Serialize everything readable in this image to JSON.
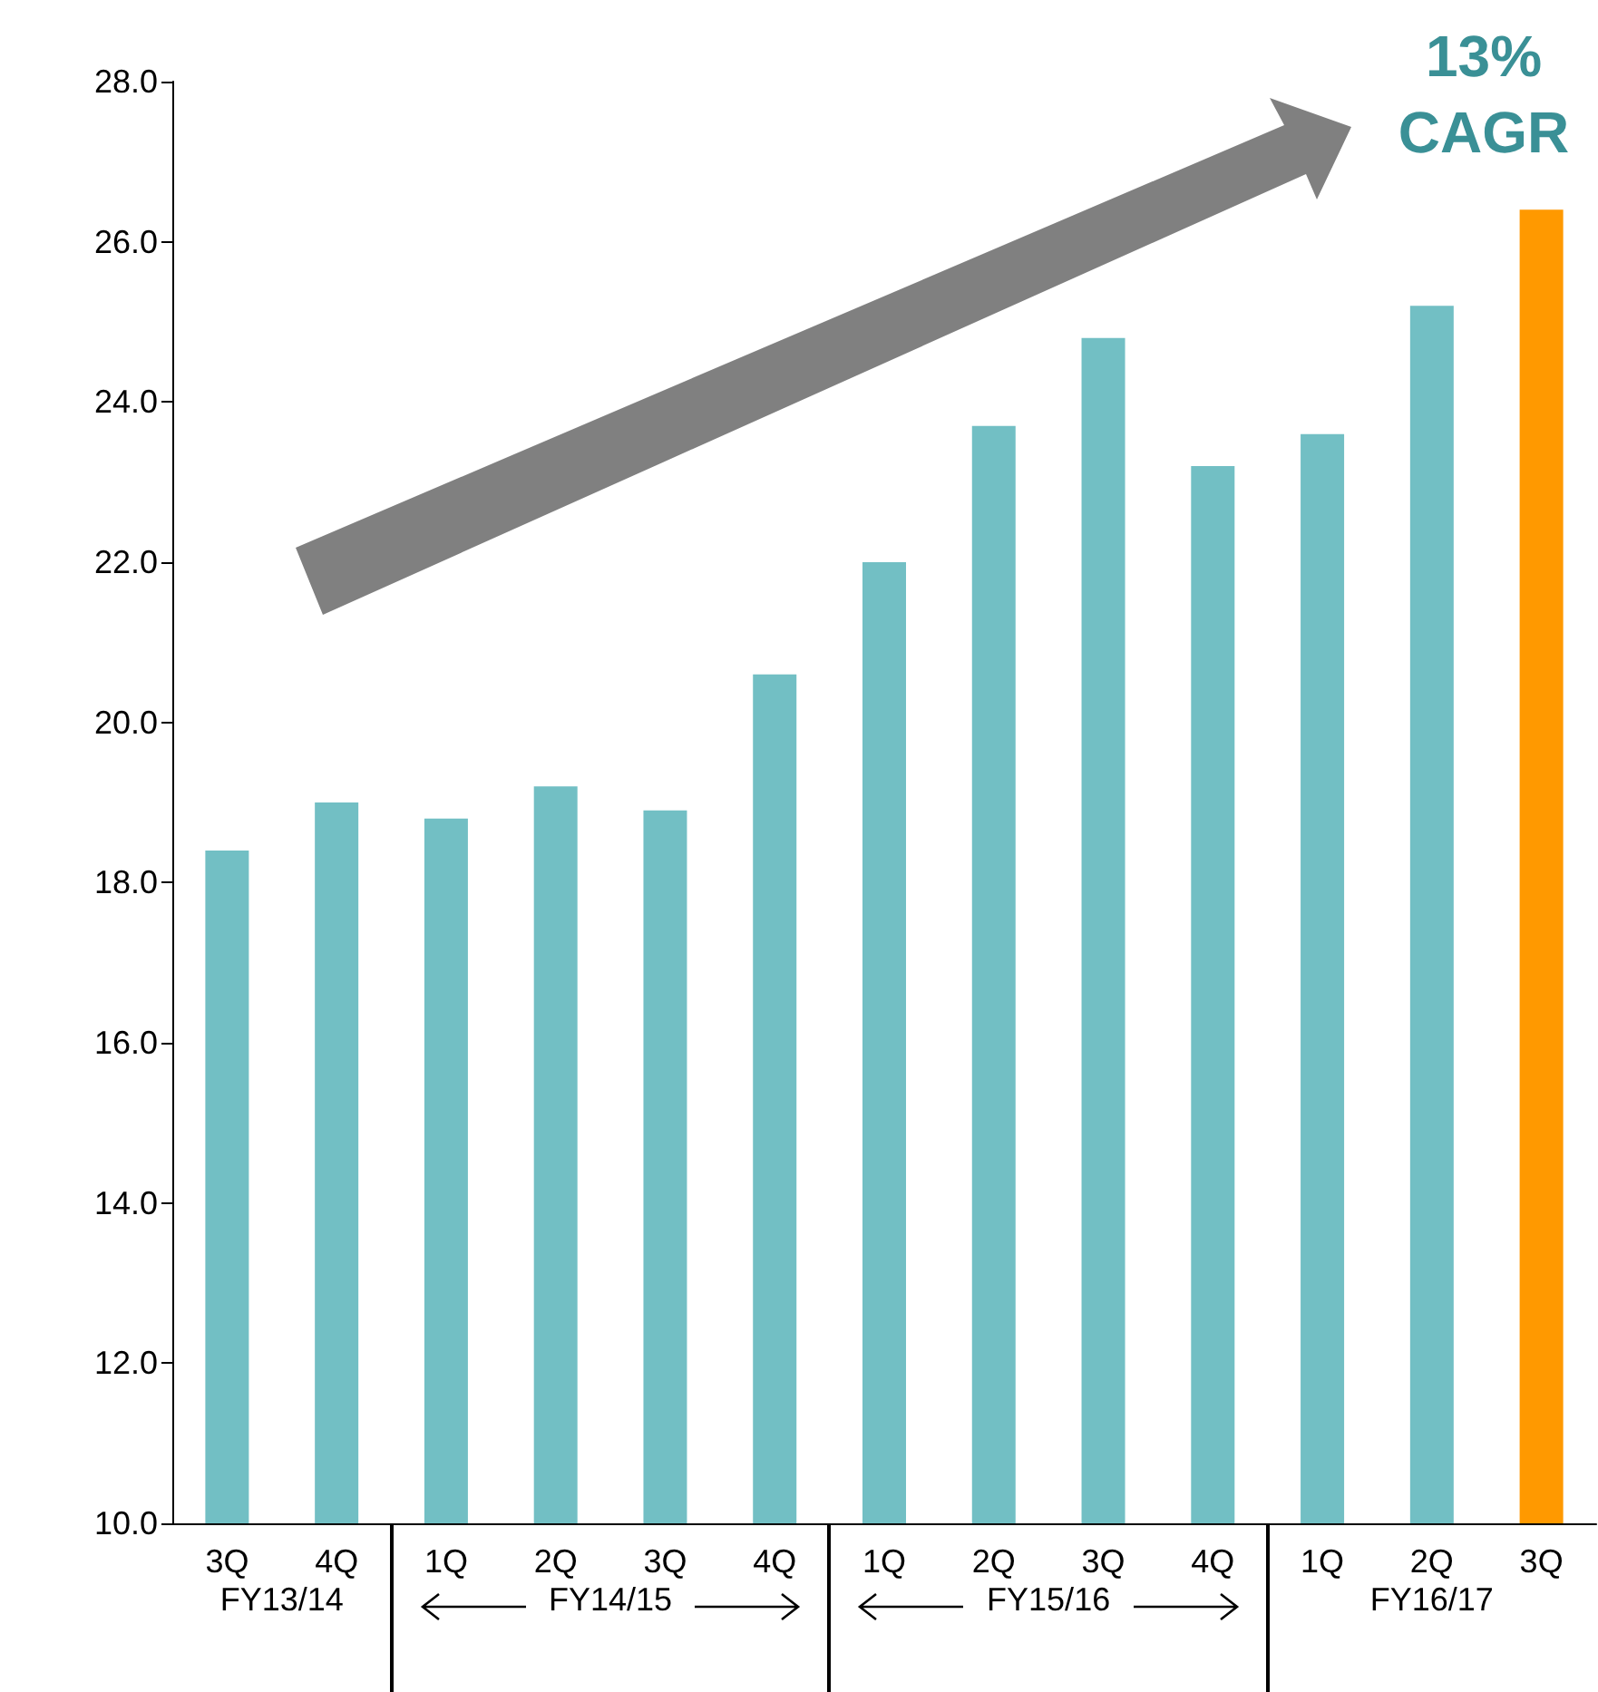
{
  "chart_data": {
    "type": "bar",
    "categories": [
      "3Q",
      "4Q",
      "1Q",
      "2Q",
      "3Q",
      "4Q",
      "1Q",
      "2Q",
      "3Q",
      "4Q",
      "1Q",
      "2Q",
      "3Q"
    ],
    "values": [
      18.4,
      19.0,
      18.8,
      19.2,
      18.9,
      20.6,
      22.0,
      23.7,
      24.8,
      23.2,
      23.6,
      25.2,
      26.4
    ],
    "colors": [
      "#72bfc4",
      "#72bfc4",
      "#72bfc4",
      "#72bfc4",
      "#72bfc4",
      "#72bfc4",
      "#72bfc4",
      "#72bfc4",
      "#72bfc4",
      "#72bfc4",
      "#72bfc4",
      "#72bfc4",
      "#ff9900"
    ],
    "ylim": [
      10,
      28
    ],
    "yticks": [
      {
        "value": 10,
        "label": "10.0"
      },
      {
        "value": 12,
        "label": "12.0"
      },
      {
        "value": 14,
        "label": "14.0"
      },
      {
        "value": 16,
        "label": "16.0"
      },
      {
        "value": 18,
        "label": "18.0"
      },
      {
        "value": 20,
        "label": "20.0"
      },
      {
        "value": 22,
        "label": "22.0"
      },
      {
        "value": 24,
        "label": "24.0"
      },
      {
        "value": 26,
        "label": "26.0"
      },
      {
        "value": 28,
        "label": "28.0"
      }
    ],
    "grid": false,
    "annotations": [
      "13% CAGR",
      "FY13/14",
      "FY14/15",
      "FY15/16",
      "FY16/17"
    ]
  }
}
